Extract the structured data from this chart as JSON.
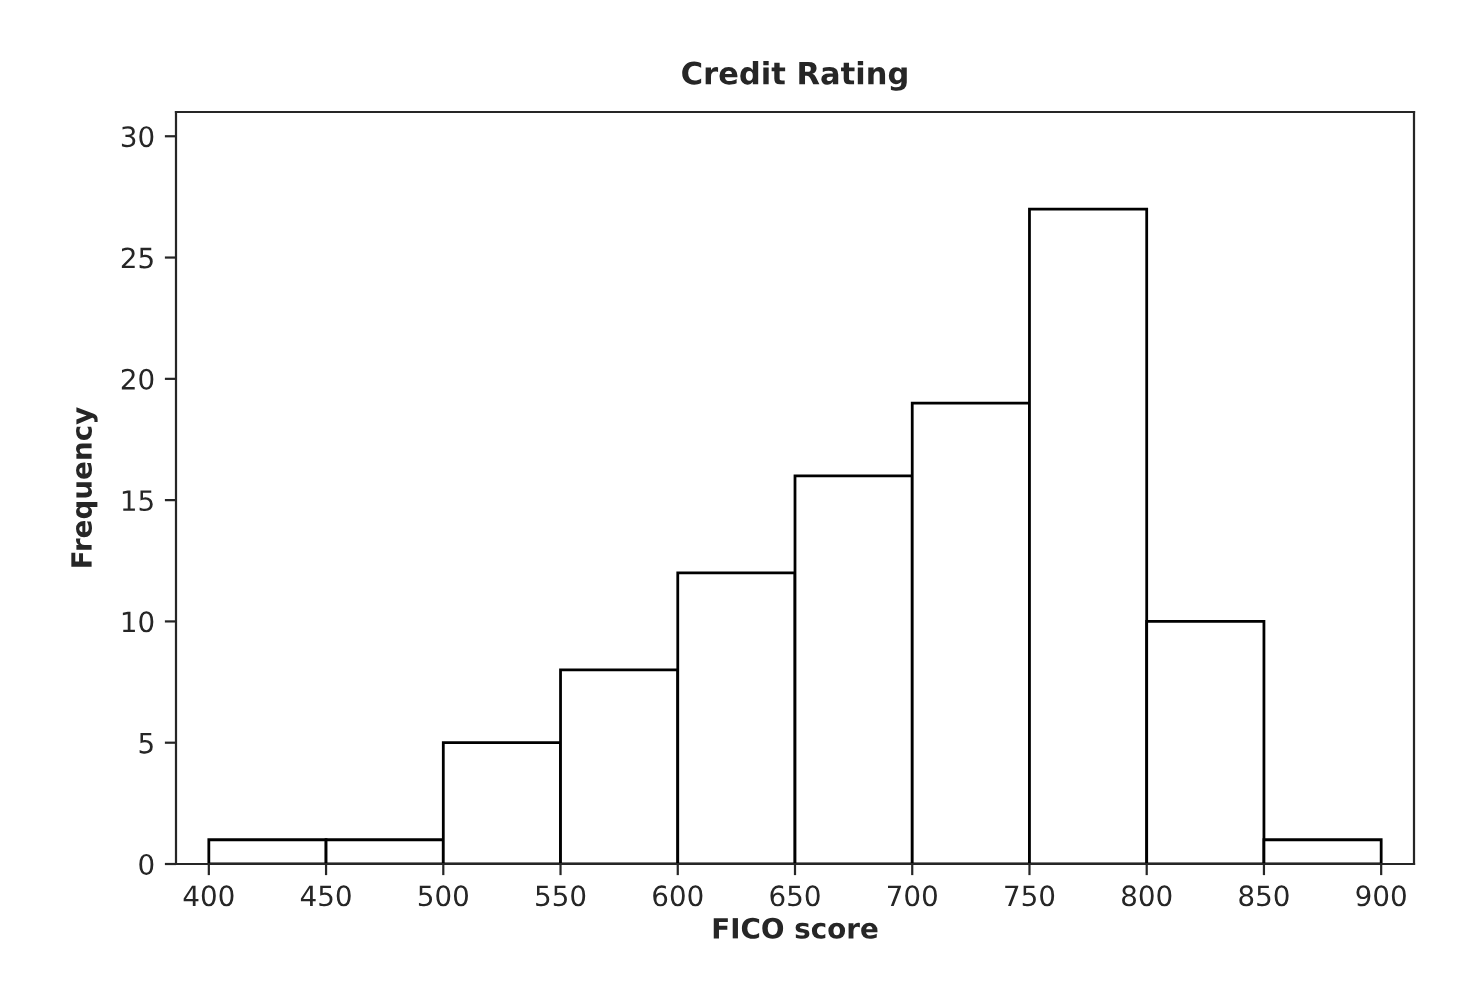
{
  "chart_data": {
    "type": "histogram",
    "title": "Credit Rating",
    "xlabel": "FICO score",
    "ylabel": "Frequency",
    "bins": [
      400,
      450,
      500,
      550,
      600,
      650,
      700,
      750,
      800,
      850,
      900
    ],
    "values": [
      1,
      1,
      5,
      8,
      12,
      16,
      19,
      27,
      10,
      1
    ],
    "color": "#ffffff",
    "xlim": [
      386,
      914
    ],
    "xticks": [
      400,
      450,
      500,
      550,
      600,
      650,
      700,
      750,
      800,
      850,
      900
    ],
    "ylim": [
      0,
      31
    ],
    "yticks": [
      0,
      5,
      10,
      15,
      20,
      25,
      30
    ],
    "grid": false
  }
}
